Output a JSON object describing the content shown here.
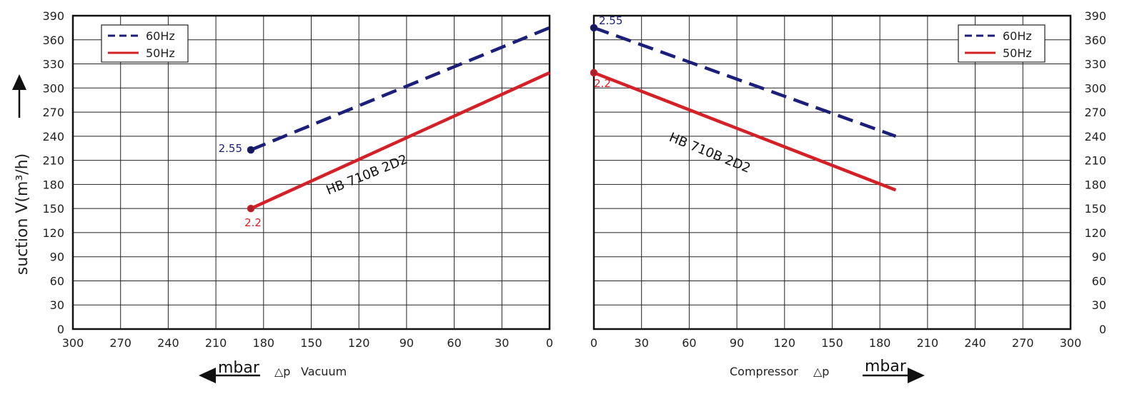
{
  "y_axis_label": "suction V(m³/h)",
  "chart_data": [
    {
      "type": "line",
      "panel": "vacuum",
      "x_label_unit": "mbar",
      "x_label_symbol": "△p",
      "x_label_text": "Vacuum",
      "x_ticks": [
        300,
        270,
        240,
        210,
        180,
        150,
        120,
        90,
        60,
        30,
        0
      ],
      "y_ticks": [
        0,
        30,
        60,
        90,
        120,
        150,
        180,
        210,
        240,
        270,
        300,
        330,
        360,
        390
      ],
      "xlim": [
        300,
        0
      ],
      "ylim": [
        0,
        390
      ],
      "grid": true,
      "legend_position": "top-left",
      "annotation": "HB 710B 2D2",
      "series": [
        {
          "name": "60Hz",
          "style": "dashed",
          "color": "#1c1f7a",
          "x": [
            188,
            0
          ],
          "y": [
            223,
            375
          ],
          "end_label": "2.55"
        },
        {
          "name": "50Hz",
          "style": "solid",
          "color": "#d42027",
          "x": [
            188,
            0
          ],
          "y": [
            150,
            319
          ],
          "end_label": "2.2"
        }
      ]
    },
    {
      "type": "line",
      "panel": "compressor",
      "x_label_unit": "mbar",
      "x_label_symbol": "△p",
      "x_label_text": "Compressor",
      "x_ticks": [
        0,
        30,
        60,
        90,
        120,
        150,
        180,
        210,
        240,
        270,
        300
      ],
      "y_ticks": [
        0,
        30,
        60,
        90,
        120,
        150,
        180,
        210,
        240,
        270,
        300,
        330,
        360,
        390
      ],
      "xlim": [
        0,
        300
      ],
      "ylim": [
        0,
        390
      ],
      "grid": true,
      "legend_position": "top-right",
      "annotation": "HB 710B 2D2",
      "series": [
        {
          "name": "60Hz",
          "style": "dashed",
          "color": "#1c1f7a",
          "x": [
            0,
            190
          ],
          "y": [
            375,
            240
          ],
          "end_label": "2.55"
        },
        {
          "name": "50Hz",
          "style": "solid",
          "color": "#d42027",
          "x": [
            0,
            190
          ],
          "y": [
            319,
            173
          ],
          "end_label": "2.2"
        }
      ]
    }
  ]
}
